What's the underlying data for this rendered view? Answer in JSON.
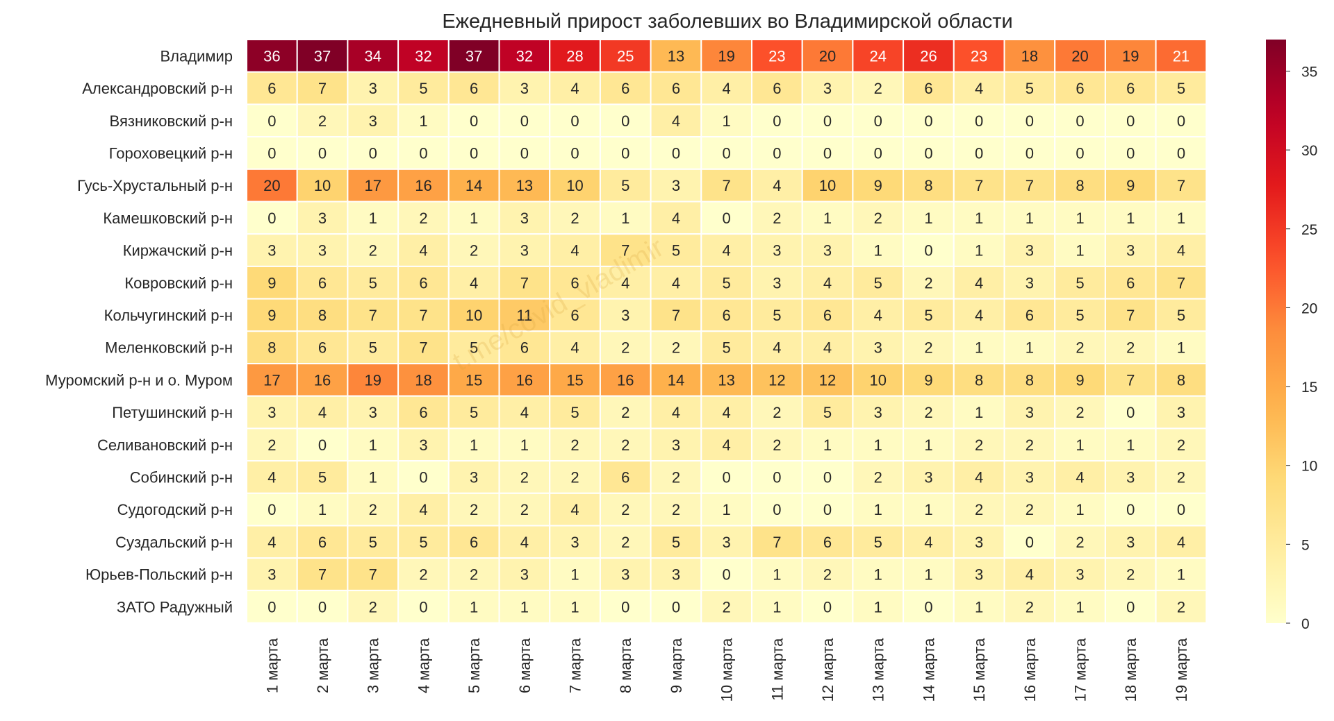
{
  "chart_data": {
    "type": "heatmap",
    "title": "Ежедневный прирост заболевших во Владимирской области",
    "watermark": "t.me/covid_vladimir",
    "rows": [
      "Владимир",
      "Александровский р-н",
      "Вязниковский р-н",
      "Гороховецкий р-н",
      "Гусь-Хрустальный р-н",
      "Камешковский р-н",
      "Киржачский р-н",
      "Ковровский р-н",
      "Кольчугинский р-н",
      "Меленковский р-н",
      "Муромский р-н и о. Муром",
      "Петушинский р-н",
      "Селивановский р-н",
      "Собинский р-н",
      "Судогодский р-н",
      "Суздальский р-н",
      "Юрьев-Польский р-н",
      "ЗАТО Радужный"
    ],
    "columns": [
      "1 марта",
      "2 марта",
      "3 марта",
      "4 марта",
      "5 марта",
      "6 марта",
      "7 марта",
      "8 марта",
      "9 марта",
      "10 марта",
      "11 марта",
      "12 марта",
      "13 марта",
      "14 марта",
      "15 марта",
      "16 марта",
      "17 марта",
      "18 марта",
      "19 марта"
    ],
    "values": [
      [
        36,
        37,
        34,
        32,
        37,
        32,
        28,
        25,
        13,
        19,
        23,
        20,
        24,
        26,
        23,
        18,
        20,
        19,
        21
      ],
      [
        6,
        7,
        3,
        5,
        6,
        3,
        4,
        6,
        6,
        4,
        6,
        3,
        2,
        6,
        4,
        5,
        6,
        6,
        5
      ],
      [
        0,
        2,
        3,
        1,
        0,
        0,
        0,
        0,
        4,
        1,
        0,
        0,
        0,
        0,
        0,
        0,
        0,
        0,
        0
      ],
      [
        0,
        0,
        0,
        0,
        0,
        0,
        0,
        0,
        0,
        0,
        0,
        0,
        0,
        0,
        0,
        0,
        0,
        0,
        0
      ],
      [
        20,
        10,
        17,
        16,
        14,
        13,
        10,
        5,
        3,
        7,
        4,
        10,
        9,
        8,
        7,
        7,
        8,
        9,
        7
      ],
      [
        0,
        3,
        1,
        2,
        1,
        3,
        2,
        1,
        4,
        0,
        2,
        1,
        2,
        1,
        1,
        1,
        1,
        1,
        1
      ],
      [
        3,
        3,
        2,
        4,
        2,
        3,
        4,
        7,
        5,
        4,
        3,
        3,
        1,
        0,
        1,
        3,
        1,
        3,
        4
      ],
      [
        9,
        6,
        5,
        6,
        4,
        7,
        6,
        4,
        4,
        5,
        3,
        4,
        5,
        2,
        4,
        3,
        5,
        6,
        7
      ],
      [
        9,
        8,
        7,
        7,
        10,
        11,
        6,
        3,
        7,
        6,
        5,
        6,
        4,
        5,
        4,
        6,
        5,
        7,
        5
      ],
      [
        8,
        6,
        5,
        7,
        5,
        6,
        4,
        2,
        2,
        5,
        4,
        4,
        3,
        2,
        1,
        1,
        2,
        2,
        1
      ],
      [
        17,
        16,
        19,
        18,
        15,
        16,
        15,
        16,
        14,
        13,
        12,
        12,
        10,
        9,
        8,
        8,
        9,
        7,
        8
      ],
      [
        3,
        4,
        3,
        6,
        5,
        4,
        5,
        2,
        4,
        4,
        2,
        5,
        3,
        2,
        1,
        3,
        2,
        0,
        3
      ],
      [
        2,
        0,
        1,
        3,
        1,
        1,
        2,
        2,
        3,
        4,
        2,
        1,
        1,
        1,
        2,
        2,
        1,
        1,
        2
      ],
      [
        4,
        5,
        1,
        0,
        3,
        2,
        2,
        6,
        2,
        0,
        0,
        0,
        2,
        3,
        4,
        3,
        4,
        3,
        2
      ],
      [
        0,
        1,
        2,
        4,
        2,
        2,
        4,
        2,
        2,
        1,
        0,
        0,
        1,
        1,
        2,
        2,
        1,
        0,
        0
      ],
      [
        4,
        6,
        5,
        5,
        6,
        4,
        3,
        2,
        5,
        3,
        7,
        6,
        5,
        4,
        3,
        0,
        2,
        3,
        4
      ],
      [
        3,
        7,
        7,
        2,
        2,
        3,
        1,
        3,
        3,
        0,
        1,
        2,
        1,
        1,
        3,
        4,
        3,
        2,
        1
      ],
      [
        0,
        0,
        2,
        0,
        1,
        1,
        1,
        0,
        0,
        2,
        1,
        0,
        1,
        0,
        1,
        2,
        1,
        0,
        2
      ]
    ],
    "vmin": 0,
    "vmax": 37,
    "colormap": "YlOrRd",
    "colorbar_ticks": [
      0,
      5,
      10,
      15,
      20,
      25,
      30,
      35
    ]
  }
}
